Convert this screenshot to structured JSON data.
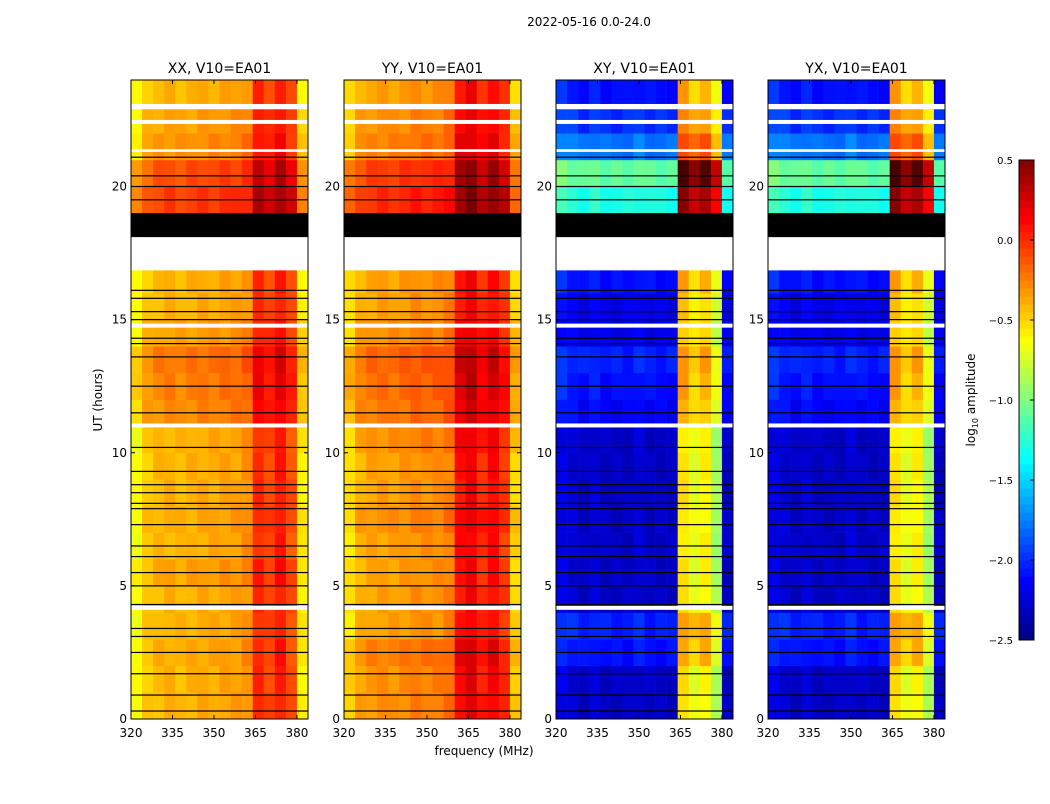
{
  "figure_title": "2022-05-16 0.0-24.0",
  "ylabel": "UT (hours)",
  "xlabel": "frequency (MHz)",
  "colorbar": {
    "label": "log10 amplitude",
    "label_main": "log",
    "label_sub": "10",
    "label_rest": " amplitude",
    "range": [
      -2.5,
      0.5
    ],
    "colormap": "jet",
    "ticks": [
      "0.5",
      "0.0",
      "−0.5",
      "−1.0",
      "−1.5",
      "−2.0",
      "−2.5"
    ],
    "tick_values": [
      0.5,
      0.0,
      -0.5,
      -1.0,
      -1.5,
      -2.0,
      -2.5
    ]
  },
  "chart_data": [
    {
      "type": "heatmap",
      "title": "XX, V10=EA01",
      "xlim": [
        320,
        384
      ],
      "ylim": [
        0,
        24
      ],
      "xticks": [
        "320",
        "335",
        "350",
        "365",
        "380"
      ],
      "xtick_values": [
        320,
        335,
        350,
        365,
        380
      ],
      "yticks": [
        "0",
        "5",
        "10",
        "15",
        "20"
      ],
      "ytick_values": [
        0,
        5,
        10,
        15,
        20
      ],
      "freq_bin_start_mhz": [
        320,
        324,
        328,
        332,
        336,
        340,
        344,
        348,
        352,
        356,
        360,
        364,
        368,
        372,
        376,
        380
      ],
      "freq_profile": [
        -0.65,
        -0.47,
        -0.42,
        -0.4,
        -0.42,
        -0.4,
        -0.38,
        -0.38,
        -0.36,
        -0.35,
        -0.3,
        0.0,
        -0.08,
        0.05,
        -0.12,
        -0.58
      ],
      "hour_offsets": [
        0,
        0,
        0.02,
        0,
        0,
        0.05,
        0,
        0.02,
        0,
        0,
        0,
        0.12,
        0.15,
        0.18,
        0.05,
        0,
        0,
        0,
        0,
        0.35,
        0.3,
        0.1,
        0.05,
        0
      ]
    },
    {
      "type": "heatmap",
      "title": "YY, V10=EA01",
      "xlim": [
        320,
        384
      ],
      "ylim": [
        0,
        24
      ],
      "xticks": [
        "320",
        "335",
        "350",
        "365",
        "380"
      ],
      "xtick_values": [
        320,
        335,
        350,
        365,
        380
      ],
      "yticks": [
        "0",
        "5",
        "10",
        "15",
        "20"
      ],
      "ytick_values": [
        0,
        5,
        10,
        15,
        20
      ],
      "freq_bin_start_mhz": [
        320,
        324,
        328,
        332,
        336,
        340,
        344,
        348,
        352,
        356,
        360,
        364,
        368,
        372,
        376,
        380
      ],
      "freq_profile": [
        -0.55,
        -0.4,
        -0.36,
        -0.35,
        -0.35,
        -0.33,
        -0.3,
        -0.3,
        -0.3,
        -0.25,
        0.08,
        0.15,
        0.0,
        0.1,
        -0.05,
        -0.5
      ],
      "hour_offsets": [
        0.05,
        0.05,
        0.1,
        0,
        0,
        0,
        0,
        0.05,
        0,
        0,
        0.05,
        0.12,
        0.15,
        0.18,
        0.05,
        0,
        0,
        0,
        0.15,
        0.35,
        0.3,
        0.1,
        0.05,
        0
      ]
    },
    {
      "type": "heatmap",
      "title": "XY, V10=EA01",
      "xlim": [
        320,
        384
      ],
      "ylim": [
        0,
        24
      ],
      "xticks": [
        "320",
        "335",
        "350",
        "365",
        "380"
      ],
      "xtick_values": [
        320,
        335,
        350,
        365,
        380
      ],
      "yticks": [
        "0",
        "5",
        "10",
        "15",
        "20"
      ],
      "ytick_values": [
        0,
        5,
        10,
        15,
        20
      ],
      "freq_bin_start_mhz": [
        320,
        324,
        328,
        332,
        336,
        340,
        344,
        348,
        352,
        356,
        360,
        364,
        368,
        372,
        376,
        380
      ],
      "freq_profile": [
        -2.2,
        -2.25,
        -2.3,
        -2.25,
        -2.3,
        -2.3,
        -2.3,
        -2.25,
        -2.3,
        -2.3,
        -2.3,
        -0.55,
        -0.7,
        -0.6,
        -0.9,
        -2.3
      ],
      "hour_offsets": [
        0,
        0,
        0.2,
        0.25,
        0,
        0,
        0,
        0,
        0,
        0,
        0,
        0.15,
        0.2,
        0.25,
        0.1,
        0.1,
        0.2,
        0.1,
        0.3,
        1.0,
        1.2,
        0.5,
        0.3,
        0.2
      ]
    },
    {
      "type": "heatmap",
      "title": "YX, V10=EA01",
      "xlim": [
        320,
        384
      ],
      "ylim": [
        0,
        24
      ],
      "xticks": [
        "320",
        "335",
        "350",
        "365",
        "380"
      ],
      "xtick_values": [
        320,
        335,
        350,
        365,
        380
      ],
      "yticks": [
        "0",
        "5",
        "10",
        "15",
        "20"
      ],
      "ytick_values": [
        0,
        5,
        10,
        15,
        20
      ],
      "freq_bin_start_mhz": [
        320,
        324,
        328,
        332,
        336,
        340,
        344,
        348,
        352,
        356,
        360,
        364,
        368,
        372,
        376,
        380
      ],
      "freq_profile": [
        -2.2,
        -2.25,
        -2.3,
        -2.25,
        -2.3,
        -2.3,
        -2.3,
        -2.25,
        -2.3,
        -2.3,
        -2.3,
        -0.55,
        -0.7,
        -0.6,
        -0.9,
        -2.3
      ],
      "hour_offsets": [
        0,
        0,
        0.2,
        0.25,
        0,
        0,
        0,
        0,
        0,
        0,
        0,
        0.15,
        0.2,
        0.25,
        0.1,
        0.1,
        0.2,
        0.1,
        0.3,
        1.0,
        1.2,
        0.5,
        0.3,
        0.2
      ]
    }
  ],
  "flagged_hours_white": [
    [
      22.9,
      23.1
    ],
    [
      22.35,
      22.5
    ],
    [
      21.3,
      21.4
    ],
    [
      16.85,
      18.1
    ],
    [
      14.7,
      14.85
    ],
    [
      10.95,
      11.1
    ],
    [
      4.1,
      4.25
    ]
  ],
  "zero_block_hours_black": [
    [
      18.1,
      19.0
    ]
  ],
  "zero_line_hours_black": [
    0.3,
    0.9,
    1.7,
    2.5,
    3.1,
    3.4,
    4.3,
    5.0,
    5.5,
    6.1,
    6.5,
    7.3,
    7.9,
    8.1,
    8.5,
    8.8,
    9.3,
    10.2,
    11.5,
    12.5,
    13.6,
    14.1,
    14.3,
    15.0,
    15.3,
    15.8,
    16.1,
    19.5,
    20.0,
    20.4,
    21.1
  ]
}
